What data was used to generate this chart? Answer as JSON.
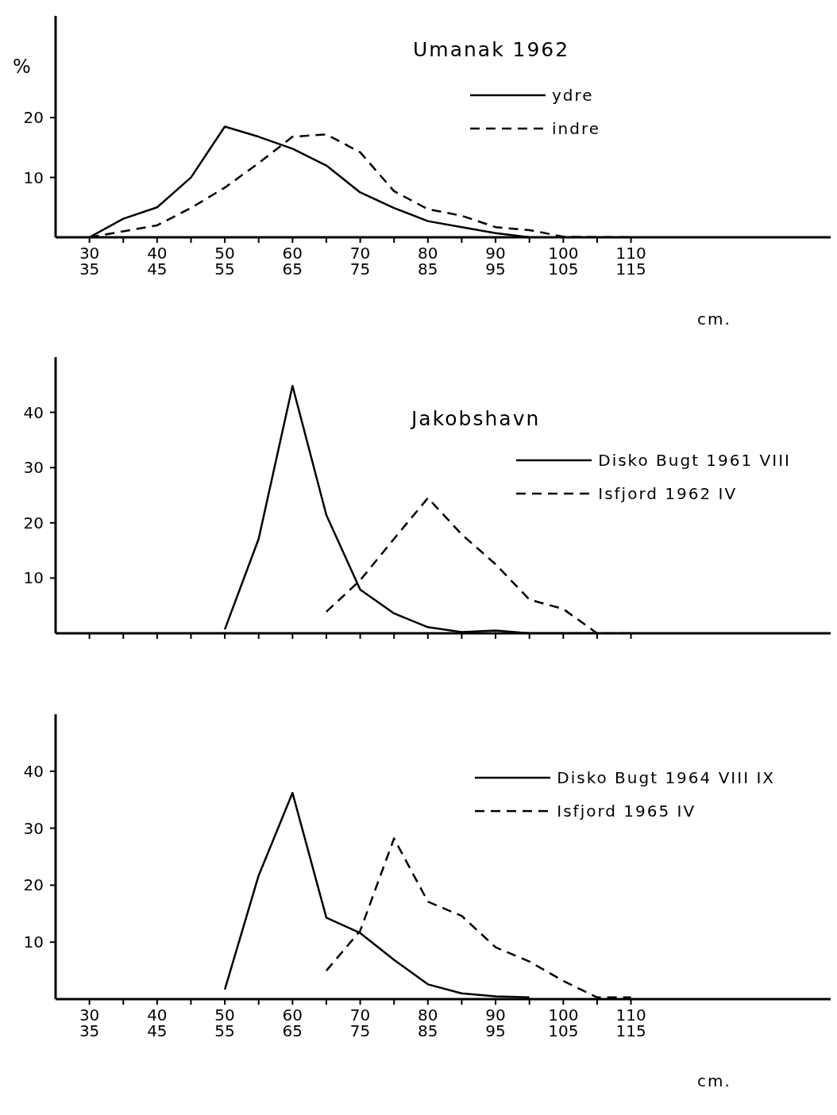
{
  "chart_data": [
    {
      "type": "line",
      "title": "Umanak 1962",
      "ylabel": "%",
      "xlabel": "cm.",
      "legend": "top right",
      "ylim": [
        0,
        37
      ],
      "categories": [
        "30\n35",
        null,
        "40\n45",
        null,
        "50\n55",
        null,
        "60\n65",
        null,
        "70\n75",
        null,
        "80\n85",
        null,
        "90\n95",
        null,
        "100\n105",
        null,
        "110\n115"
      ],
      "yticks": [
        10,
        20
      ],
      "series": [
        {
          "name": "ydre",
          "color": "#000000",
          "line_style": "solid",
          "values": [
            0,
            3.1,
            5.0,
            10.0,
            18.5,
            16.8,
            14.8,
            12.0,
            7.5,
            4.9,
            2.7,
            1.7,
            0.7,
            0,
            null,
            null,
            null
          ]
        },
        {
          "name": "indre",
          "color": "#000000",
          "line_style": "dashed",
          "values": [
            0,
            1.0,
            2.0,
            4.9,
            8.3,
            12.4,
            16.8,
            17.2,
            14.2,
            7.7,
            4.7,
            3.6,
            1.7,
            1.2,
            0.1,
            0,
            0
          ]
        }
      ]
    },
    {
      "type": "line",
      "title": "Jakobshavn",
      "legend": "top right",
      "tick_labels": "y",
      "ylim": [
        0,
        50
      ],
      "categories": [
        null,
        null,
        null,
        null,
        null,
        null,
        null,
        null,
        null,
        null,
        null,
        null,
        null,
        null,
        null,
        null,
        null
      ],
      "yticks": [
        10,
        20,
        30,
        40
      ],
      "series": [
        {
          "name": "Disko Bugt 1961 VIII",
          "color": "#000000",
          "line_style": "solid",
          "values": [
            null,
            null,
            null,
            null,
            0.7,
            17.1,
            44.8,
            21.4,
            7.9,
            3.6,
            1.1,
            0.2,
            0.5,
            0,
            0,
            0,
            null
          ]
        },
        {
          "name": "Isfjord 1962 IV",
          "color": "#000000",
          "line_style": "dashed",
          "values": [
            null,
            null,
            null,
            null,
            null,
            null,
            null,
            3.9,
            9.6,
            17.1,
            24.5,
            17.9,
            12.5,
            6.1,
            4.4,
            0,
            0
          ]
        }
      ]
    },
    {
      "type": "line",
      "xlabel": "cm.",
      "legend": "top right",
      "ylim": [
        0,
        50
      ],
      "categories": [
        "30\n35",
        null,
        "40\n45",
        null,
        "50\n55",
        null,
        "60\n65",
        null,
        "70\n75",
        null,
        "80\n85",
        null,
        "90\n95",
        null,
        "100\n105",
        null,
        "110\n115"
      ],
      "yticks": [
        10,
        20,
        30,
        40
      ],
      "series": [
        {
          "name": "Disko Bugt 1964 VIII IX",
          "color": "#000000",
          "line_style": "solid",
          "values": [
            null,
            null,
            null,
            null,
            1.7,
            21.7,
            36.2,
            14.3,
            11.6,
            6.9,
            2.6,
            1.0,
            0.5,
            0.3,
            null,
            null,
            null
          ]
        },
        {
          "name": "Isfjord 1965 IV",
          "color": "#000000",
          "line_style": "dashed",
          "values": [
            null,
            null,
            null,
            null,
            null,
            null,
            null,
            5.0,
            12.0,
            28.2,
            17.1,
            14.6,
            9.1,
            6.6,
            3.2,
            0.3,
            0.3
          ]
        }
      ]
    }
  ]
}
